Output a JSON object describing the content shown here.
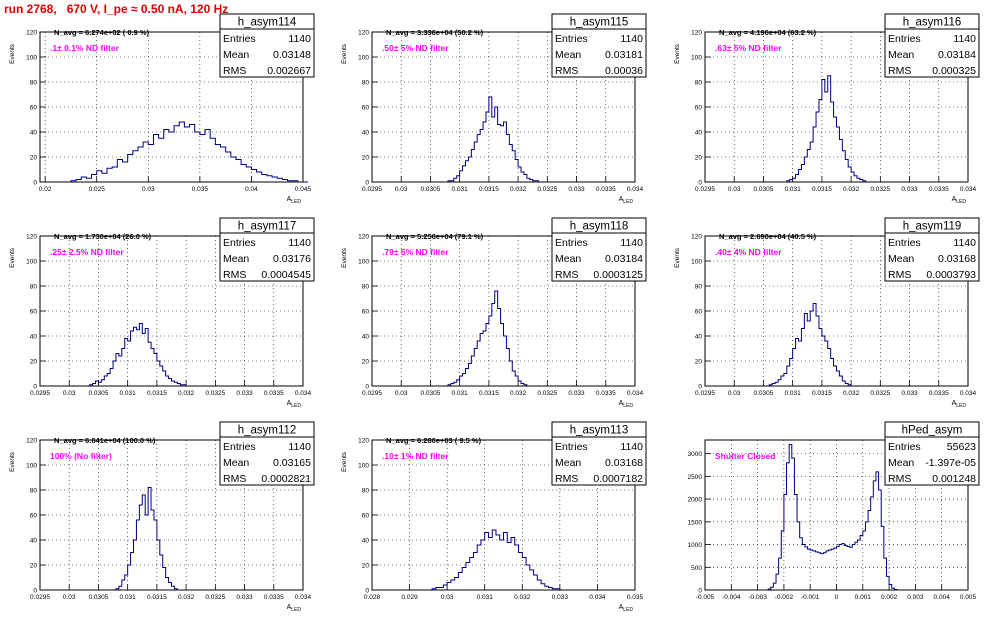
{
  "header": {
    "title": "run 2768,   670 V, I_pe ≈ 0.50 nA, 120 Hz"
  },
  "colors": {
    "histogram": "#00007f",
    "annotation": "#ff00ff",
    "title": "#e00000",
    "frame": "#000000",
    "grid": "#000000"
  },
  "chart_data": [
    {
      "type": "histogram",
      "name": "h_asym114",
      "title": "h_asym114",
      "annotation": "N_avg = 6.274e+02 ( 0.9 %)",
      "label": ".1± 0.1% ND filter",
      "stats": {
        "Entries": "1140",
        "Mean": "0.03148",
        "RMS": "0.002667"
      },
      "xlabel": "A_LED",
      "ylabel": "Events",
      "xlim": [
        0.0195,
        0.045
      ],
      "ylim": [
        0,
        120
      ],
      "xticks": [
        "0.02",
        "0.025",
        "0.03",
        "0.035",
        "0.04",
        "0.045"
      ],
      "yticks": [
        "0",
        "20",
        "40",
        "60",
        "80",
        "100",
        "120"
      ],
      "bin_width": 0.0005,
      "x0": 0.02,
      "values": [
        0,
        0,
        0,
        0,
        0,
        1,
        2,
        4,
        3,
        6,
        9,
        7,
        11,
        12,
        18,
        16,
        22,
        25,
        28,
        32,
        30,
        38,
        35,
        42,
        40,
        45,
        48,
        44,
        46,
        40,
        38,
        42,
        35,
        30,
        28,
        24,
        20,
        18,
        14,
        12,
        10,
        8,
        6,
        5,
        4,
        3,
        2,
        1,
        1,
        0,
        0
      ]
    },
    {
      "type": "histogram",
      "name": "h_asym115",
      "title": "h_asym115",
      "annotation": "N_avg = 3.336e+04 (50.2 %)",
      "label": ".50± 5% ND filter",
      "stats": {
        "Entries": "1140",
        "Mean": "0.03181",
        "RMS": "0.00036"
      },
      "xlabel": "A_LED",
      "ylabel": "Events",
      "xlim": [
        0.0295,
        0.034
      ],
      "ylim": [
        0,
        120
      ],
      "xticks": [
        "0.0295",
        "0.03",
        "0.0305",
        "0.031",
        "0.0315",
        "0.032",
        "0.0325",
        "0.033",
        "0.0335",
        "0.034"
      ],
      "yticks": [
        "0",
        "20",
        "40",
        "60",
        "80",
        "100",
        "120"
      ],
      "bin_width": 5e-05,
      "x0": 0.0308,
      "values": [
        1,
        1,
        3,
        5,
        9,
        13,
        17,
        20,
        26,
        32,
        38,
        42,
        48,
        56,
        68,
        52,
        60,
        46,
        45,
        48,
        38,
        30,
        25,
        18,
        12,
        8,
        6,
        3,
        2,
        1,
        1
      ]
    },
    {
      "type": "histogram",
      "name": "h_asym116",
      "title": "h_asym116",
      "annotation": "N_avg = 4.196e+04 (63.2 %)",
      "label": ".63± 5% ND filter",
      "stats": {
        "Entries": "1140",
        "Mean": "0.03184",
        "RMS": "0.000325"
      },
      "xlabel": "A_LED",
      "ylabel": "Events",
      "xlim": [
        0.0295,
        0.034
      ],
      "ylim": [
        0,
        120
      ],
      "xticks": [
        "0.0295",
        "0.03",
        "0.0305",
        "0.031",
        "0.0315",
        "0.032",
        "0.0325",
        "0.033",
        "0.0335",
        "0.034"
      ],
      "yticks": [
        "0",
        "20",
        "40",
        "60",
        "80",
        "100",
        "120"
      ],
      "bin_width": 5e-05,
      "x0": 0.0309,
      "values": [
        1,
        2,
        3,
        6,
        10,
        14,
        20,
        26,
        32,
        44,
        56,
        66,
        82,
        72,
        85,
        64,
        52,
        44,
        34,
        25,
        18,
        12,
        8,
        5,
        3,
        2,
        1
      ]
    },
    {
      "type": "histogram",
      "name": "h_asym117",
      "title": "h_asym117",
      "annotation": "N_avg = 1.730e+04 (26.0 %)",
      "label": ".25± 2.5% ND filter",
      "stats": {
        "Entries": "1140",
        "Mean": "0.03176",
        "RMS": "0.0004545"
      },
      "xlabel": "A_LED",
      "ylabel": "Events",
      "xlim": [
        0.0295,
        0.034
      ],
      "ylim": [
        0,
        120
      ],
      "xticks": [
        "0.0295",
        "0.03",
        "0.0305",
        "0.031",
        "0.0315",
        "0.032",
        "0.0325",
        "0.033",
        "0.0335",
        "0.034"
      ],
      "yticks": [
        "0",
        "20",
        "40",
        "60",
        "80",
        "100",
        "120"
      ],
      "bin_width": 5e-05,
      "x0": 0.0303,
      "values": [
        0,
        1,
        2,
        4,
        3,
        5,
        8,
        10,
        14,
        20,
        26,
        24,
        30,
        38,
        36,
        44,
        47,
        45,
        50,
        42,
        46,
        35,
        30,
        26,
        20,
        16,
        12,
        8,
        6,
        4,
        3,
        2,
        1,
        1,
        0
      ]
    },
    {
      "type": "histogram",
      "name": "h_asym118",
      "title": "h_asym118",
      "annotation": "N_avg = 5.256e+04 (79.1 %)",
      "label": ".79± 5% ND filter",
      "stats": {
        "Entries": "1140",
        "Mean": "0.03184",
        "RMS": "0.0003125"
      },
      "xlabel": "A_LED",
      "ylabel": "Events",
      "xlim": [
        0.0295,
        0.034
      ],
      "ylim": [
        0,
        120
      ],
      "xticks": [
        "0.0295",
        "0.03",
        "0.0305",
        "0.031",
        "0.0315",
        "0.032",
        "0.0325",
        "0.033",
        "0.0335",
        "0.034"
      ],
      "yticks": [
        "0",
        "20",
        "40",
        "60",
        "80",
        "100",
        "120"
      ],
      "bin_width": 5e-05,
      "x0": 0.0308,
      "values": [
        1,
        2,
        3,
        5,
        8,
        10,
        14,
        18,
        24,
        30,
        36,
        42,
        44,
        50,
        56,
        66,
        76,
        62,
        50,
        40,
        30,
        20,
        12,
        8,
        4,
        2,
        1
      ]
    },
    {
      "type": "histogram",
      "name": "h_asym119",
      "title": "h_asym119",
      "annotation": "N_avg = 2.690e+04 (40.5 %)",
      "label": ".40± 4% ND filter",
      "stats": {
        "Entries": "1140",
        "Mean": "0.03168",
        "RMS": "0.0003793"
      },
      "xlabel": "A_LED",
      "ylabel": "Events",
      "xlim": [
        0.0295,
        0.034
      ],
      "ylim": [
        0,
        120
      ],
      "xticks": [
        "0.0295",
        "0.03",
        "0.0305",
        "0.031",
        "0.0315",
        "0.032",
        "0.0325",
        "0.033",
        "0.0335",
        "0.034"
      ],
      "yticks": [
        "0",
        "20",
        "40",
        "60",
        "80",
        "100",
        "120"
      ],
      "bin_width": 5e-05,
      "x0": 0.0306,
      "values": [
        1,
        2,
        3,
        5,
        8,
        10,
        16,
        22,
        30,
        38,
        36,
        46,
        58,
        52,
        60,
        66,
        56,
        46,
        40,
        36,
        30,
        22,
        16,
        12,
        8,
        4,
        2,
        1
      ]
    },
    {
      "type": "histogram",
      "name": "h_asym112",
      "title": "h_asym112",
      "annotation": "N_avg = 6.641e+04 (100.0 %)",
      "label": "100% (No filter)",
      "stats": {
        "Entries": "1140",
        "Mean": "0.03165",
        "RMS": "0.0002821"
      },
      "xlabel": "A_LED",
      "ylabel": "Events",
      "xlim": [
        0.0295,
        0.034
      ],
      "ylim": [
        0,
        120
      ],
      "xticks": [
        "0.0295",
        "0.03",
        "0.0305",
        "0.031",
        "0.0315",
        "0.032",
        "0.0325",
        "0.033",
        "0.0335",
        "0.034"
      ],
      "yticks": [
        "0",
        "20",
        "40",
        "60",
        "80",
        "100",
        "120"
      ],
      "bin_width": 5e-05,
      "x0": 0.0308,
      "values": [
        1,
        3,
        8,
        12,
        20,
        30,
        40,
        56,
        68,
        76,
        60,
        82,
        64,
        56,
        40,
        28,
        18,
        10,
        6,
        3,
        1
      ]
    },
    {
      "type": "histogram",
      "name": "h_asym113",
      "title": "h_asym113",
      "annotation": "N_avg = 6.280e+03 ( 9.5 %)",
      "label": ".10± 1% ND filter",
      "stats": {
        "Entries": "1140",
        "Mean": "0.03168",
        "RMS": "0.0007182"
      },
      "xlabel": "A_LED",
      "ylabel": "Events",
      "xlim": [
        0.028,
        0.035
      ],
      "ylim": [
        0,
        120
      ],
      "xticks": [
        "0.028",
        "0.029",
        "0.03",
        "0.031",
        "0.032",
        "0.033",
        "0.034",
        "0.035"
      ],
      "yticks": [
        "0",
        "20",
        "40",
        "60",
        "80",
        "100",
        "120"
      ],
      "bin_width": 0.0001,
      "x0": 0.0296,
      "values": [
        1,
        2,
        2,
        4,
        6,
        8,
        10,
        14,
        18,
        22,
        26,
        30,
        36,
        40,
        46,
        42,
        48,
        44,
        40,
        46,
        38,
        42,
        36,
        30,
        26,
        20,
        16,
        12,
        8,
        5,
        3,
        2,
        1,
        1,
        0
      ]
    },
    {
      "type": "histogram",
      "name": "hPed_asym",
      "title": "hPed_asym",
      "annotation": "",
      "label": "Shutter Closed",
      "stats": {
        "Entries": "55623",
        "Mean": "-1.397e-05",
        "RMS": "0.001248"
      },
      "xlabel": "",
      "ylabel": "",
      "xlim": [
        -0.005,
        0.005
      ],
      "ylim": [
        0,
        3300
      ],
      "xticks": [
        "-0.005",
        "-0.004",
        "-0.003",
        "-0.002",
        "-0.001",
        "0",
        "0.001",
        "0.002",
        "0.003",
        "0.004",
        "0.005"
      ],
      "yticks": [
        "0",
        "500",
        "1000",
        "1500",
        "2000",
        "2500",
        "3000"
      ],
      "bin_width": 0.0001,
      "x0": -0.0026,
      "values": [
        20,
        60,
        150,
        350,
        700,
        1300,
        2100,
        2800,
        3200,
        2900,
        2100,
        1500,
        1150,
        1000,
        950,
        900,
        880,
        860,
        840,
        820,
        800,
        820,
        860,
        880,
        900,
        920,
        960,
        1000,
        1020,
        980,
        960,
        940,
        1000,
        1050,
        1100,
        1200,
        1300,
        1500,
        1750,
        2050,
        2400,
        2600,
        2200,
        1400,
        700,
        300,
        120,
        40,
        10,
        0
      ]
    }
  ]
}
